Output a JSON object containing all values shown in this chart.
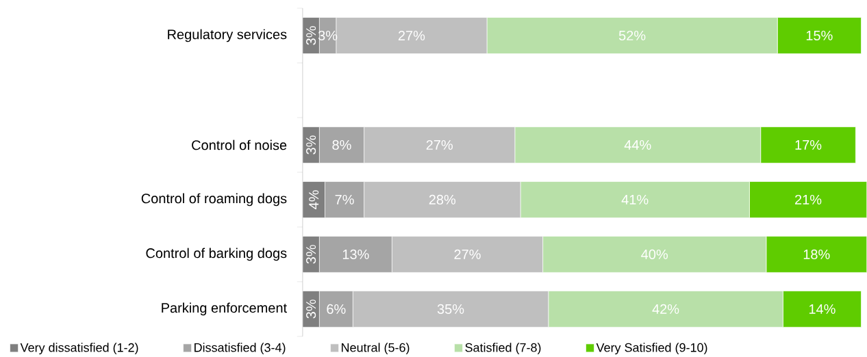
{
  "chart_data": {
    "type": "bar",
    "orientation": "horizontal",
    "stacked": true,
    "legend": "bottom",
    "categories": [
      "Regulatory services",
      null,
      "Control of noise",
      "Control of roaming dogs",
      "Control of barking dogs",
      "Parking enforcement"
    ],
    "series": [
      {
        "name": "Very dissatisfied (1-2)",
        "color": "#7f7f7f",
        "values": [
          3,
          null,
          3,
          4,
          3,
          3
        ],
        "value_labels": [
          "3%",
          null,
          "3%",
          "4%",
          "3%",
          "3%"
        ]
      },
      {
        "name": "Dissatisfied (3-4)",
        "color": "#a5a5a5",
        "values": [
          3,
          null,
          8,
          7,
          13,
          6
        ],
        "value_labels": [
          "3%",
          null,
          "8%",
          "7%",
          "13%",
          "6%"
        ]
      },
      {
        "name": "Neutral (5-6)",
        "color": "#bfbfbf",
        "values": [
          27,
          null,
          27,
          28,
          27,
          35
        ],
        "value_labels": [
          "27%",
          null,
          "27%",
          "28%",
          "27%",
          "35%"
        ]
      },
      {
        "name": "Satisfied (7-8)",
        "color": "#b8e0a8",
        "values": [
          52,
          null,
          44,
          41,
          40,
          42
        ],
        "value_labels": [
          "52%",
          null,
          "44%",
          "41%",
          "40%",
          "42%"
        ]
      },
      {
        "name": "Very Satisfied (9-10)",
        "color": "#5fcc00",
        "values": [
          15,
          null,
          17,
          21,
          18,
          14
        ],
        "value_labels": [
          "15%",
          null,
          "17%",
          "21%",
          "18%",
          "14%"
        ]
      }
    ]
  }
}
